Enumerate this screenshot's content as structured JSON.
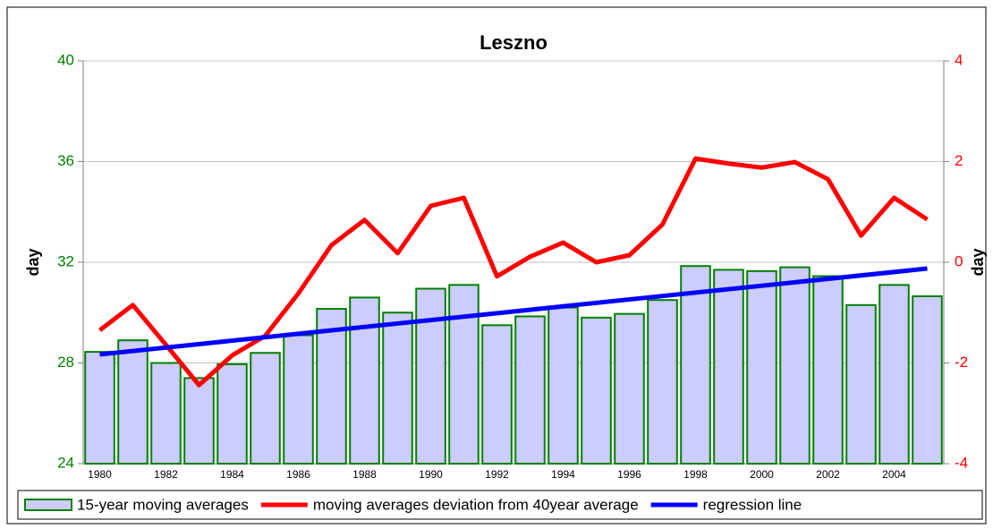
{
  "chart_data": {
    "type": "bar",
    "title": "Leszno",
    "y_label": "day",
    "y2_label": "day",
    "x": [
      1980,
      1981,
      1982,
      1983,
      1984,
      1985,
      1986,
      1987,
      1988,
      1989,
      1990,
      1991,
      1992,
      1993,
      1994,
      1995,
      1996,
      1997,
      1998,
      1999,
      2000,
      2001,
      2002,
      2003,
      2004,
      2005
    ],
    "xlim": [
      1979.5,
      2005.5
    ],
    "xticks": [
      1980,
      1982,
      1984,
      1986,
      1988,
      1990,
      1992,
      1994,
      1996,
      1998,
      2000,
      2002,
      2004
    ],
    "ylim": [
      24,
      40
    ],
    "yticks": [
      24,
      28,
      32,
      36,
      40
    ],
    "y2lim": [
      -4,
      4
    ],
    "y2ticks": [
      -4,
      -2,
      0,
      2,
      4
    ],
    "grid": true,
    "legend": "bottom",
    "series": [
      {
        "name": "15-year moving averages",
        "type": "bar",
        "color": "#ccccff",
        "edge_color": "#008000",
        "values": [
          28.44,
          28.9,
          28.0,
          27.4,
          27.95,
          28.4,
          29.1,
          30.15,
          30.6,
          30.0,
          30.95,
          31.1,
          29.5,
          29.85,
          30.2,
          29.8,
          29.95,
          30.5,
          31.85,
          31.7,
          31.65,
          31.8,
          31.45,
          30.3,
          31.1,
          30.65
        ]
      },
      {
        "name": "moving averages deviation from 40year average",
        "type": "line",
        "axis": "y2",
        "color": "#ff0000",
        "values": [
          -1.35,
          -0.85,
          -1.64,
          -2.44,
          -1.85,
          -1.46,
          -0.62,
          0.34,
          0.84,
          0.18,
          1.12,
          1.28,
          -0.28,
          0.11,
          0.39,
          0.0,
          0.14,
          0.75,
          2.06,
          1.96,
          1.88,
          1.99,
          1.65,
          0.53,
          1.28,
          0.85
        ]
      },
      {
        "name": "regression line",
        "type": "line",
        "color": "#0000ff",
        "x": [
          1980,
          2005
        ],
        "values": [
          28.34,
          31.75
        ]
      }
    ]
  }
}
